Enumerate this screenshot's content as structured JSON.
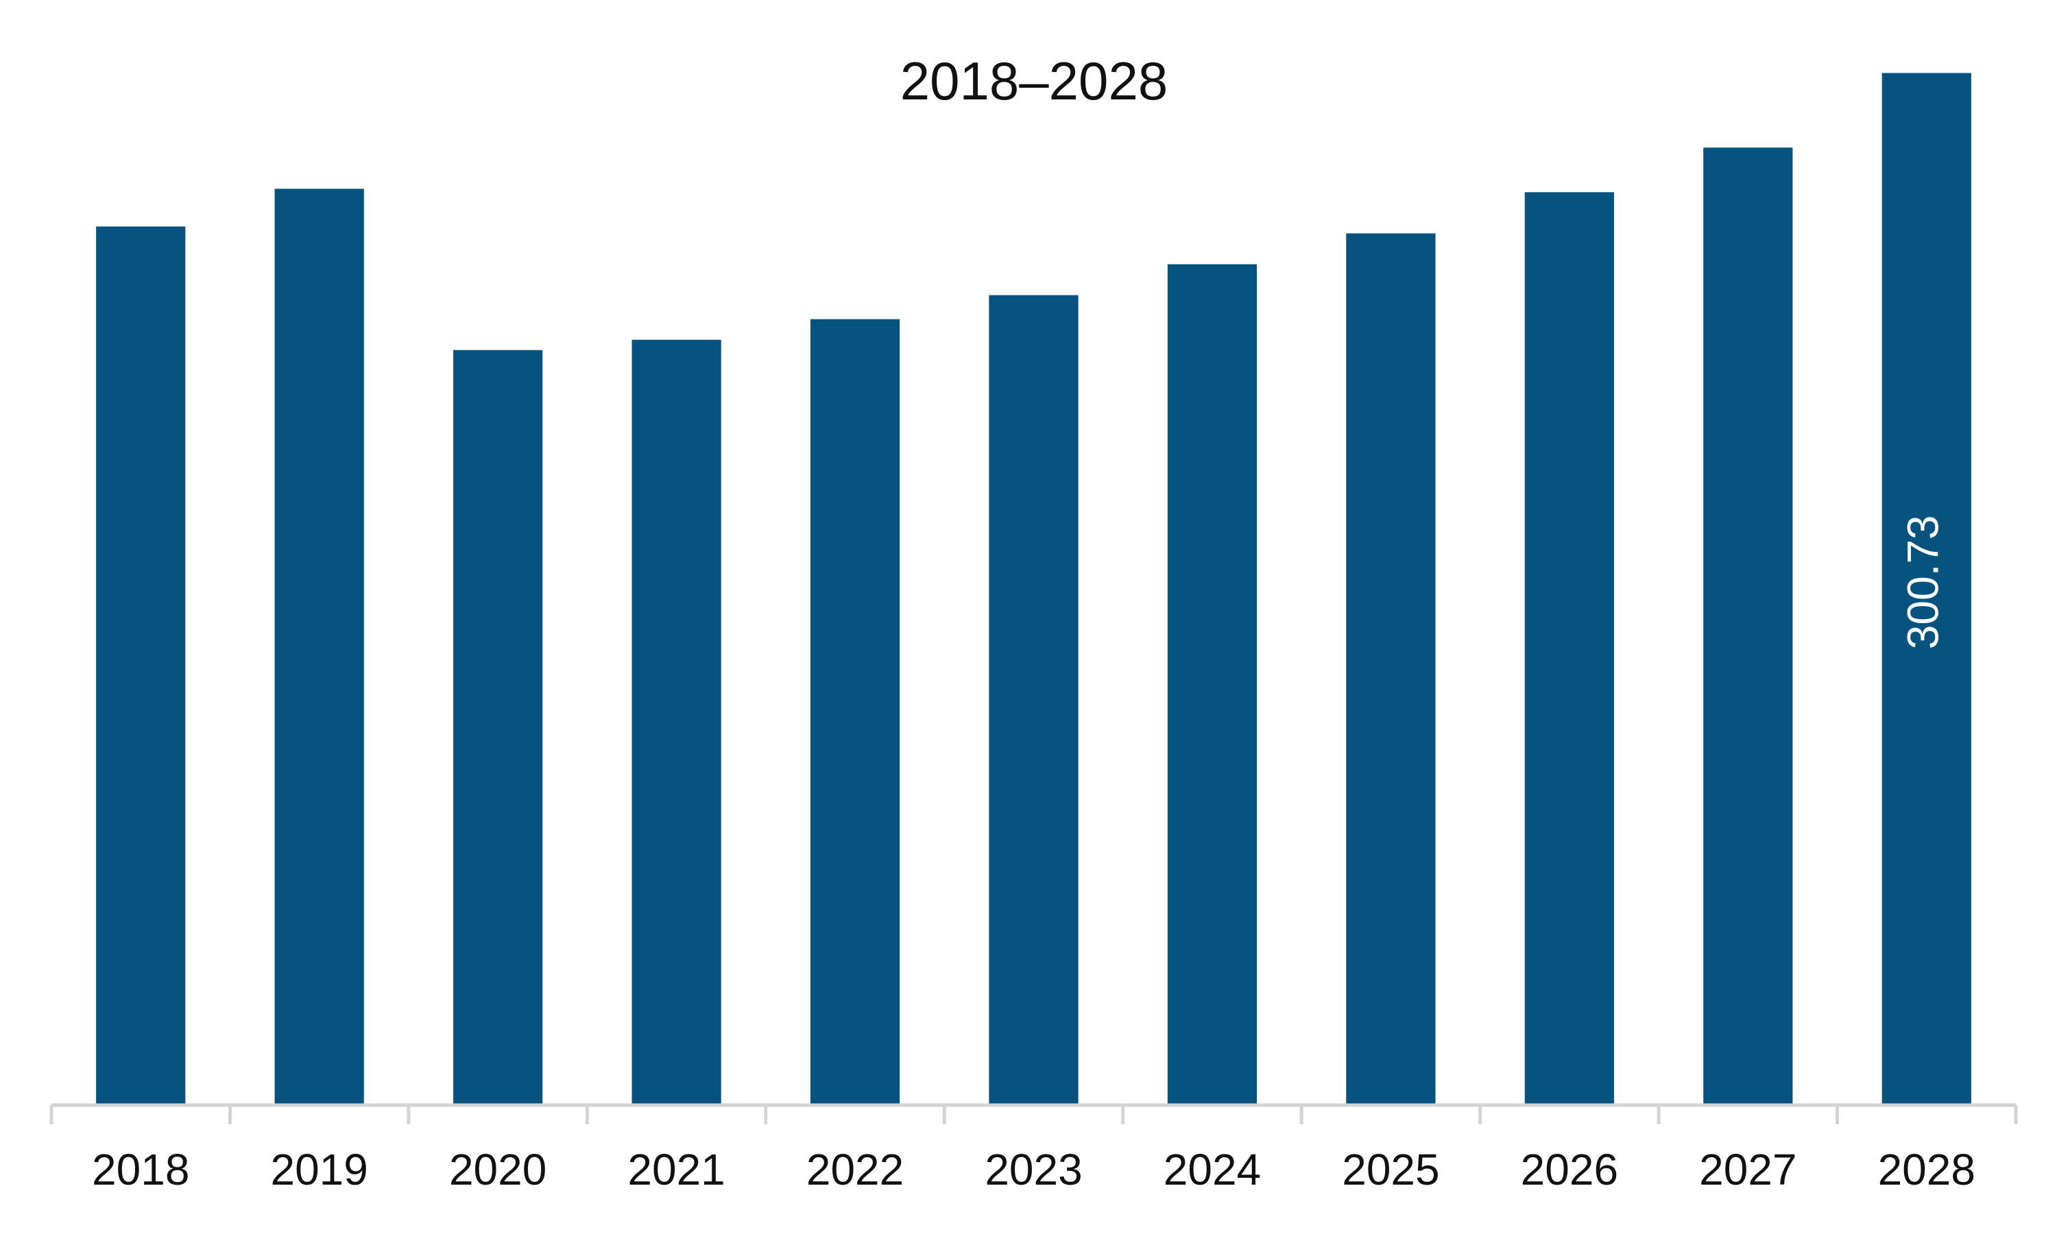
{
  "chart_data": {
    "type": "bar",
    "title": "2018–2028",
    "categories": [
      "2018",
      "2019",
      "2020",
      "2021",
      "2022",
      "2023",
      "2024",
      "2025",
      "2026",
      "2027",
      "2028"
    ],
    "values": [
      256,
      267,
      220,
      223,
      229,
      236,
      245,
      254,
      266,
      279,
      300.73
    ],
    "data_labels": [
      {
        "category": "2028",
        "text": "300.73"
      }
    ],
    "ylim": [
      0,
      320
    ],
    "grid": false,
    "legend": "none",
    "colors": {
      "bar": "#07537f",
      "axis": "#d4d4d4",
      "text": "#111111",
      "label": "#ffffff"
    }
  }
}
